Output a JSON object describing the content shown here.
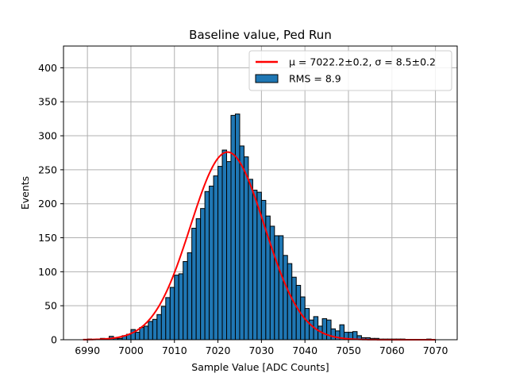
{
  "chart_data": {
    "type": "bar",
    "title": "Baseline value, Ped Run",
    "xlabel": "Sample Value [ADC Counts]",
    "ylabel": "Events",
    "xlim": [
      6984.5,
      7075
    ],
    "ylim": [
      0,
      432
    ],
    "xticks": [
      6990,
      7000,
      7010,
      7020,
      7030,
      7040,
      7050,
      7060,
      7070
    ],
    "yticks": [
      0,
      50,
      100,
      150,
      200,
      250,
      300,
      350,
      400
    ],
    "grid": true,
    "legend_position": "top-right",
    "bin_width": 1,
    "bin_starts": [
      6989,
      6990,
      6991,
      6992,
      6993,
      6994,
      6995,
      6996,
      6997,
      6998,
      6999,
      7000,
      7001,
      7002,
      7003,
      7004,
      7005,
      7006,
      7007,
      7008,
      7009,
      7010,
      7011,
      7012,
      7013,
      7014,
      7015,
      7016,
      7017,
      7018,
      7019,
      7020,
      7021,
      7022,
      7023,
      7024,
      7025,
      7026,
      7027,
      7028,
      7029,
      7030,
      7031,
      7032,
      7033,
      7034,
      7035,
      7036,
      7037,
      7038,
      7039,
      7040,
      7041,
      7042,
      7043,
      7044,
      7045,
      7046,
      7047,
      7048,
      7049,
      7050,
      7051,
      7052,
      7053,
      7054,
      7055,
      7056,
      7057,
      7058,
      7059,
      7060,
      7061,
      7062,
      7063,
      7064,
      7065,
      7066,
      7067,
      7068,
      7069
    ],
    "counts": [
      0,
      1,
      0,
      1,
      2,
      1,
      5,
      2,
      2,
      6,
      8,
      15,
      11,
      18,
      20,
      27,
      30,
      37,
      49,
      62,
      77,
      95,
      97,
      115,
      128,
      164,
      178,
      193,
      218,
      226,
      241,
      255,
      279,
      262,
      330,
      332,
      285,
      269,
      236,
      220,
      217,
      205,
      182,
      167,
      153,
      153,
      124,
      112,
      92,
      80,
      63,
      46,
      29,
      34,
      20,
      31,
      29,
      16,
      13,
      22,
      11,
      11,
      12,
      6,
      3,
      3,
      2,
      2,
      1,
      1,
      1,
      1,
      1,
      1,
      0,
      0,
      0,
      0,
      0,
      1,
      0
    ],
    "bar_color": "#1f77b4",
    "fit_color": "#ff0000",
    "fit": {
      "mu": 7022.2,
      "sigma": 8.5,
      "amplitude": 276,
      "x_range": [
        6989,
        7070
      ]
    },
    "legend": [
      {
        "label": "μ = 7022.2±0.2, σ = 8.5±0.2",
        "kind": "line",
        "color": "#ff0000"
      },
      {
        "label": "RMS = 8.9",
        "kind": "patch",
        "color": "#1f77b4"
      }
    ]
  }
}
